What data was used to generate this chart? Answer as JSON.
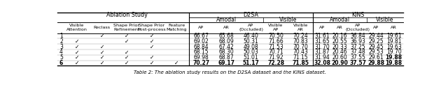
{
  "title": "Table 2: The ablation study results on the D2SA dataset and the KINS dataset.",
  "row_labels": [
    "1",
    "2",
    "3",
    "4",
    "5",
    "6"
  ],
  "checks": [
    [
      false,
      true,
      true,
      true,
      false
    ],
    [
      true,
      false,
      true,
      true,
      false
    ],
    [
      true,
      true,
      false,
      true,
      false
    ],
    [
      true,
      true,
      true,
      false,
      false
    ],
    [
      true,
      true,
      true,
      true,
      false
    ],
    [
      true,
      true,
      true,
      true,
      true
    ]
  ],
  "data": [
    [
      66.67,
      65.68,
      46.4,
      70.5,
      70.24,
      31.61,
      20.16,
      36.84,
      29.44,
      19.61
    ],
    [
      69.02,
      68.09,
      50.31,
      71.66,
      70.83,
      31.65,
      20.55,
      36.93,
      29.25,
      19.81
    ],
    [
      68.84,
      67.42,
      49.08,
      71.53,
      70.7,
      31.7,
      20.33,
      37.25,
      29.45,
      19.63
    ],
    [
      68.15,
      68.3,
      50.03,
      70.71,
      70.43,
      31.87,
      20.46,
      37.48,
      29.53,
      19.7
    ],
    [
      69.98,
      68.87,
      51.01,
      71.92,
      71.15,
      31.94,
      20.6,
      37.55,
      29.61,
      19.88
    ],
    [
      70.27,
      69.17,
      51.17,
      72.28,
      71.85,
      32.08,
      20.9,
      37.57,
      29.88,
      19.88
    ]
  ],
  "bold_last_row": true,
  "bold_kins_ar_row5": true,
  "ablation_col_names": [
    "Visible\nAttention",
    "Reclass",
    "Shape Prior\nRefinement",
    "Shape Prior\nPost-process",
    "Feature\nMatching"
  ],
  "d2sa_col_names": [
    "AP",
    "AR",
    "AP\n(Occluded)",
    "Visible\nAP",
    "Visible\nAR"
  ],
  "kins_col_names": [
    "AP",
    "AR",
    "AP\n(Occluded)",
    "AP",
    "AR"
  ],
  "section_label_ablation": "Ablation Study",
  "section_label_d2sa": "D2SA",
  "section_label_kins": "KINS",
  "subsection_amodal": "Amodal",
  "subsection_visible": "Visible",
  "caption": "Table 2: The ablation study results on the D2SA dataset and the KINS dataset."
}
